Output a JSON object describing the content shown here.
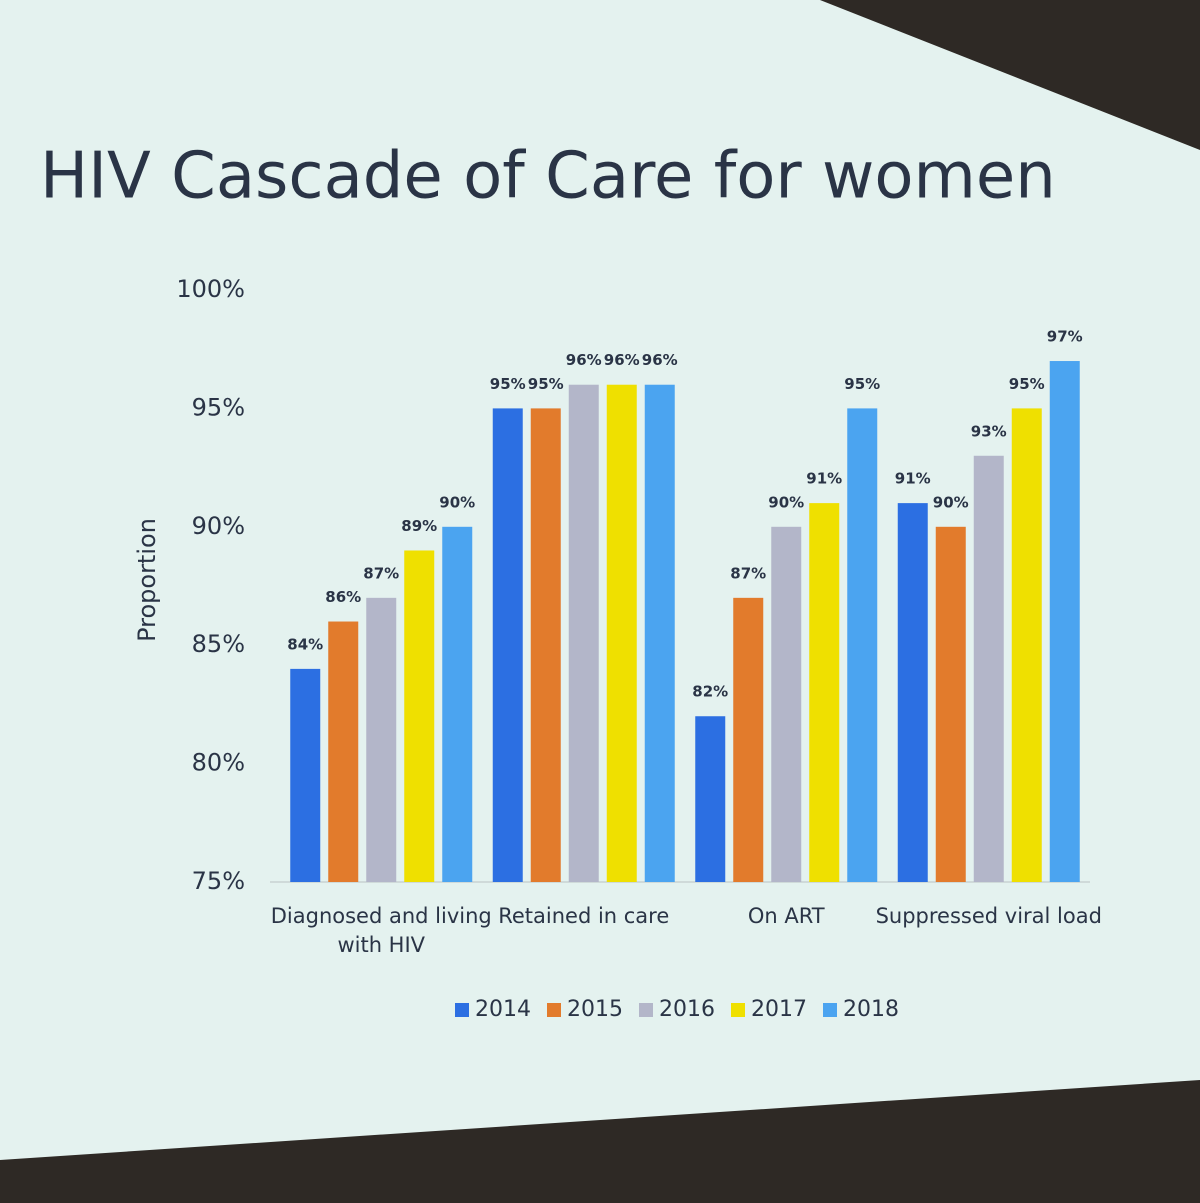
{
  "chart_data": {
    "type": "bar",
    "title": "HIV Cascade of Care for women",
    "y_label": "Proportion",
    "categories": [
      "Diagnosed and living with HIV",
      "Retained in care",
      "On ART",
      "Suppressed viral load"
    ],
    "series": [
      {
        "name": "2014",
        "color": "#2c6fe2",
        "values": [
          84,
          95,
          82,
          91
        ],
        "value_labels": [
          "84%",
          "95%",
          "82%",
          "91%"
        ]
      },
      {
        "name": "2015",
        "color": "#e27b2c",
        "values": [
          86,
          95,
          87,
          90
        ],
        "value_labels": [
          "86%",
          "95%",
          "87%",
          "90%"
        ]
      },
      {
        "name": "2016",
        "color": "#b3b6c9",
        "values": [
          87,
          96,
          90,
          93
        ],
        "value_labels": [
          "87%",
          "96%",
          "90%",
          "93%"
        ]
      },
      {
        "name": "2017",
        "color": "#efe000",
        "values": [
          89,
          96,
          91,
          95
        ],
        "value_labels": [
          "89%",
          "96%",
          "91%",
          "95%"
        ]
      },
      {
        "name": "2018",
        "color": "#4ba4f0",
        "values": [
          90,
          96,
          95,
          97
        ],
        "value_labels": [
          "90%",
          "96%",
          "95%",
          "97%"
        ]
      }
    ],
    "ylim": [
      75,
      100
    ],
    "yticks": [
      {
        "value": 75,
        "label": "75%"
      },
      {
        "value": 80,
        "label": "80%"
      },
      {
        "value": 85,
        "label": "85%"
      },
      {
        "value": 90,
        "label": "90%"
      },
      {
        "value": 95,
        "label": "95%"
      },
      {
        "value": 100,
        "label": "100%"
      }
    ],
    "grid": false,
    "legend": "bottom"
  }
}
